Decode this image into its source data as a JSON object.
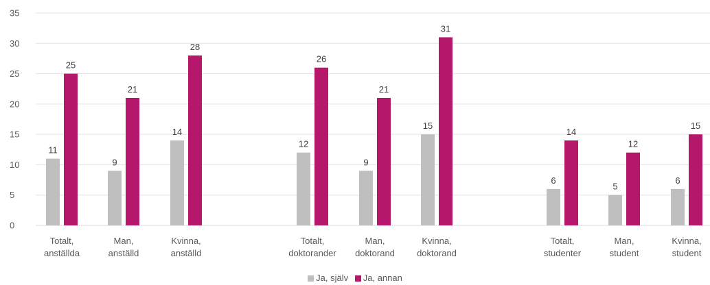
{
  "chart_data": {
    "type": "bar",
    "categories": [
      [
        "Totalt,",
        "anställda"
      ],
      [
        "Man,",
        "anställd"
      ],
      [
        "Kvinna,",
        "anställd"
      ],
      [
        "Totalt,",
        "doktorander"
      ],
      [
        "Man,",
        "doktorand"
      ],
      [
        "Kvinna,",
        "doktorand"
      ],
      [
        "Totalt,",
        "studenter"
      ],
      [
        "Man,",
        "student"
      ],
      [
        "Kvinna,",
        "student"
      ]
    ],
    "series": [
      {
        "name": "Ja, själv",
        "color": "#bfbfbf",
        "values": [
          11,
          9,
          14,
          12,
          9,
          15,
          6,
          5,
          6
        ]
      },
      {
        "name": "Ja, annan",
        "color": "#b5186b",
        "values": [
          25,
          21,
          28,
          26,
          21,
          31,
          14,
          12,
          15
        ]
      }
    ],
    "ylim": [
      0,
      35
    ],
    "yticks": [
      0,
      5,
      10,
      15,
      20,
      25,
      30,
      35
    ],
    "grid": true,
    "legend": "bottom-center",
    "title": "",
    "xlabel": "",
    "ylabel": ""
  }
}
